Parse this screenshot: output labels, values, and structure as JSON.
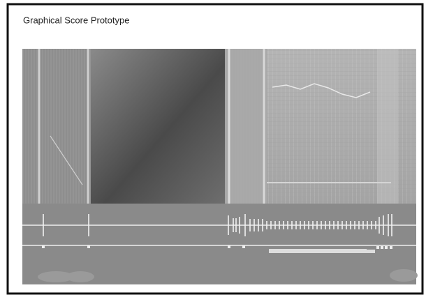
{
  "window": {
    "title": "Graphical Score Prototype"
  }
}
